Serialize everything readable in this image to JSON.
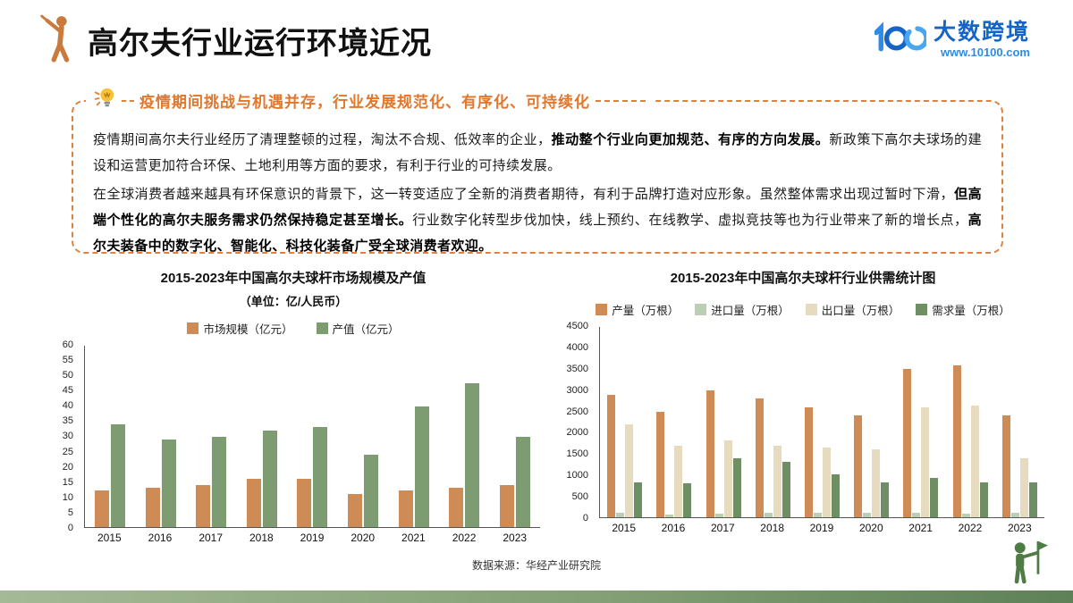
{
  "header": {
    "title": "高尔夫行业运行环境近况",
    "logo_name": "大数跨境",
    "logo_url": "www.10100.com"
  },
  "callout": {
    "heading": "疫情期间挑战与机遇并存，行业发展规范化、有序化、可持续化",
    "paragraphs": [
      [
        {
          "text": "疫情期间高尔夫行业经历了清理整顿的过程，淘汰不合规、低效率的企业，",
          "bold": false
        },
        {
          "text": "推动整个行业向更加规范、有序的方向发展。",
          "bold": true
        },
        {
          "text": "新政策下高尔夫球场的建设和运营更加符合环保、土地利用等方面的要求，有利于行业的可持续发展。",
          "bold": false
        }
      ],
      [
        {
          "text": "在全球消费者越来越具有环保意识的背景下，这一转变适应了全新的消费者期待，有利于品牌打造对应形象。虽然整体需求出现过暂时下滑，",
          "bold": false
        },
        {
          "text": "但高端个性化的高尔夫服务需求仍然保持稳定甚至增长。",
          "bold": true
        },
        {
          "text": "行业数字化转型步伐加快，线上预约、在线教学、虚拟竞技等也为行业带来了新的增长点，",
          "bold": false
        },
        {
          "text": "高尔夫装备中的数字化、智能化、科技化装备广受全球消费者欢迎。",
          "bold": true
        }
      ]
    ]
  },
  "footer": {
    "source": "数据来源：华经产业研究院"
  },
  "colors": {
    "accent_orange": "#e0823f",
    "logo_blue": "#1565c8",
    "strip_green": "#84a076"
  },
  "chart_data": [
    {
      "type": "bar",
      "title": "2015-2023年中国高尔夫球杆市场规模及产值",
      "subtitle": "（单位：亿/人民币）",
      "categories": [
        "2015",
        "2016",
        "2017",
        "2018",
        "2019",
        "2020",
        "2021",
        "2022",
        "2023"
      ],
      "series": [
        {
          "name": "市场规模（亿元）",
          "color": "#ce8b55",
          "values": [
            12,
            13,
            14,
            16,
            16,
            11,
            12,
            13,
            14
          ]
        },
        {
          "name": "产值（亿元）",
          "color": "#7e9c72",
          "values": [
            34,
            29,
            30,
            32,
            33,
            24,
            40,
            47.5,
            30
          ]
        }
      ],
      "ylim": [
        0,
        60
      ],
      "ystep": 5,
      "grid": false,
      "legend_position": "top"
    },
    {
      "type": "bar",
      "title": "2015-2023年中国高尔夫球杆行业供需统计图",
      "subtitle": "",
      "categories": [
        "2015",
        "2016",
        "2017",
        "2018",
        "2019",
        "2020",
        "2021",
        "2022",
        "2023"
      ],
      "series": [
        {
          "name": "产量（万根）",
          "color": "#ce8b55",
          "values": [
            2900,
            2500,
            3000,
            2800,
            2600,
            2400,
            3500,
            3600,
            2400
          ]
        },
        {
          "name": "进口量（万根）",
          "color": "#bacfb4",
          "values": [
            100,
            60,
            80,
            100,
            100,
            100,
            100,
            80,
            100
          ]
        },
        {
          "name": "出口量（万根）",
          "color": "#e6dabf",
          "values": [
            2200,
            1700,
            1820,
            1700,
            1650,
            1600,
            2600,
            2650,
            1400
          ]
        },
        {
          "name": "需求量（万根）",
          "color": "#6e8f64",
          "values": [
            820,
            800,
            1400,
            1310,
            1020,
            820,
            920,
            820,
            820
          ]
        }
      ],
      "ylim": [
        0,
        4500
      ],
      "ystep": 500,
      "grid": false,
      "legend_position": "top"
    }
  ]
}
